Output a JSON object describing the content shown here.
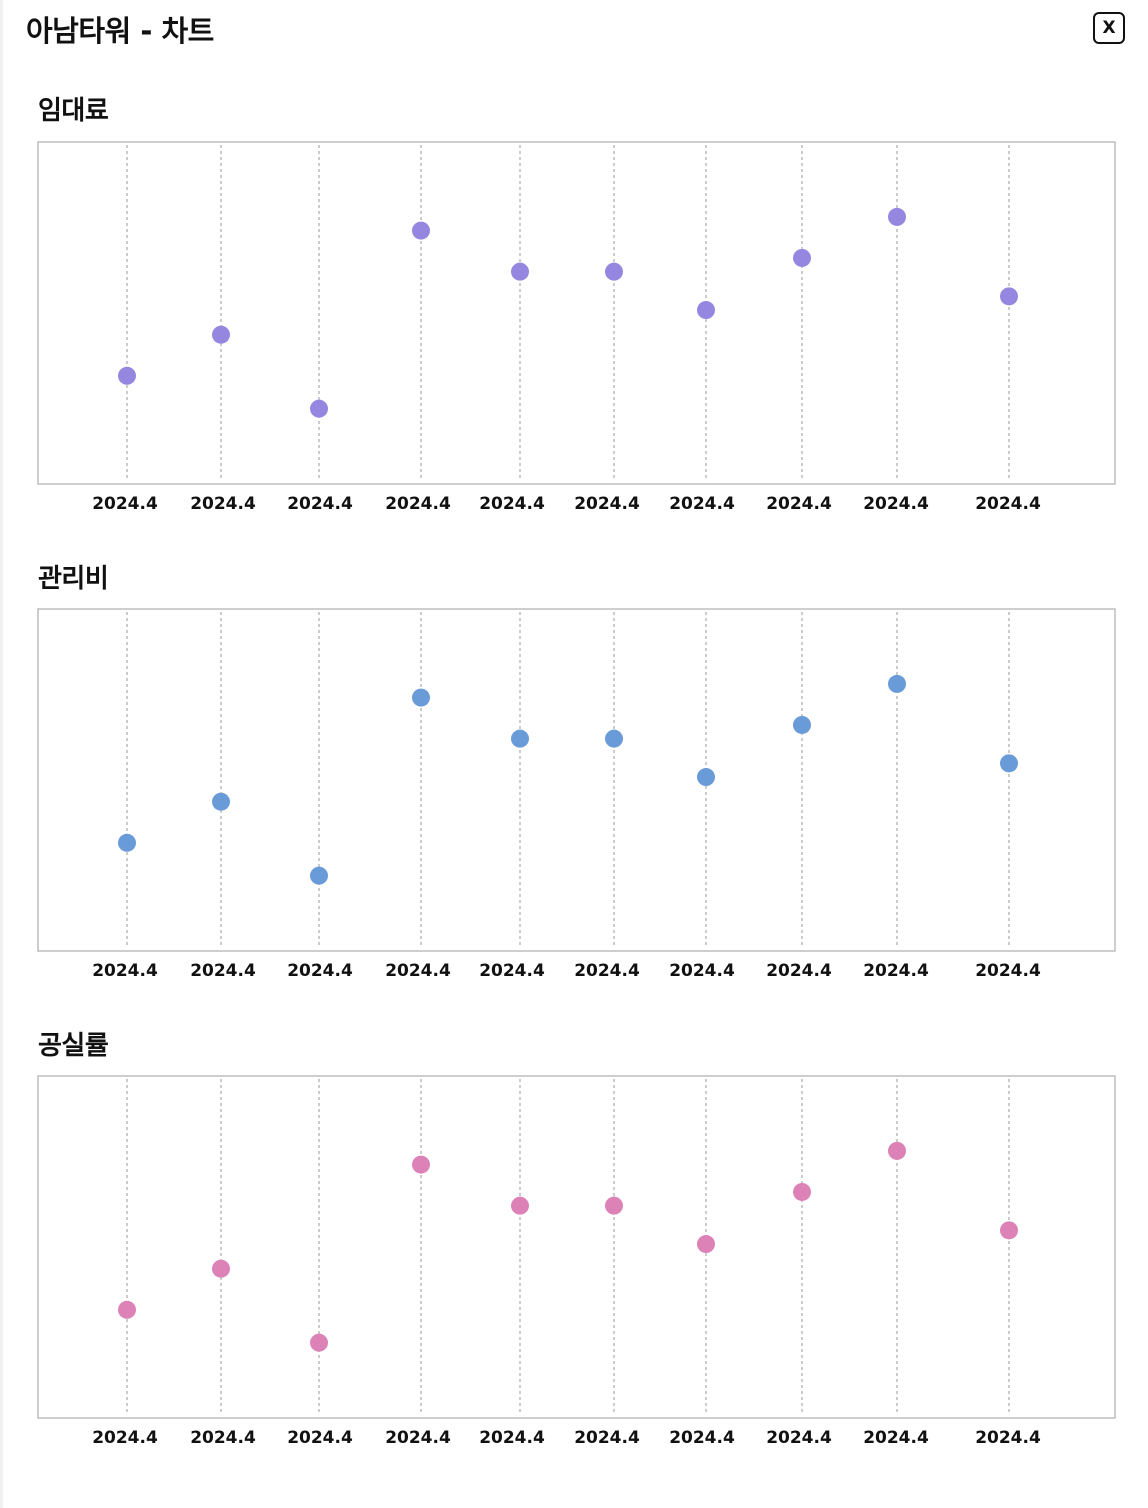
{
  "header": {
    "title": "아남타워 - 차트",
    "close_label": "X"
  },
  "sections": [
    {
      "title": "임대료",
      "color": "#9586e0"
    },
    {
      "title": "관리비",
      "color": "#6a9bd9"
    },
    {
      "title": "공실률",
      "color": "#dc82b6"
    }
  ],
  "chart_data": [
    {
      "type": "scatter",
      "title": "임대료",
      "categories": [
        "2024.4",
        "2024.4",
        "2024.4",
        "2024.4",
        "2024.4",
        "2024.4",
        "2024.4",
        "2024.4",
        "2024.4",
        "2024.4"
      ],
      "values": [
        30,
        45,
        18,
        83,
        68,
        68,
        54,
        73,
        88,
        59
      ],
      "ylim": [
        0,
        100
      ],
      "grid": "vertical-dashed",
      "color": "#9586e0"
    },
    {
      "type": "scatter",
      "title": "관리비",
      "categories": [
        "2024.4",
        "2024.4",
        "2024.4",
        "2024.4",
        "2024.4",
        "2024.4",
        "2024.4",
        "2024.4",
        "2024.4",
        "2024.4"
      ],
      "values": [
        30,
        45,
        18,
        83,
        68,
        68,
        54,
        73,
        88,
        59
      ],
      "ylim": [
        0,
        100
      ],
      "grid": "vertical-dashed",
      "color": "#6a9bd9"
    },
    {
      "type": "scatter",
      "title": "공실률",
      "categories": [
        "2024.4",
        "2024.4",
        "2024.4",
        "2024.4",
        "2024.4",
        "2024.4",
        "2024.4",
        "2024.4",
        "2024.4",
        "2024.4"
      ],
      "values": [
        30,
        45,
        18,
        83,
        68,
        68,
        54,
        73,
        88,
        59
      ],
      "ylim": [
        0,
        100
      ],
      "grid": "vertical-dashed",
      "color": "#dc82b6"
    }
  ]
}
